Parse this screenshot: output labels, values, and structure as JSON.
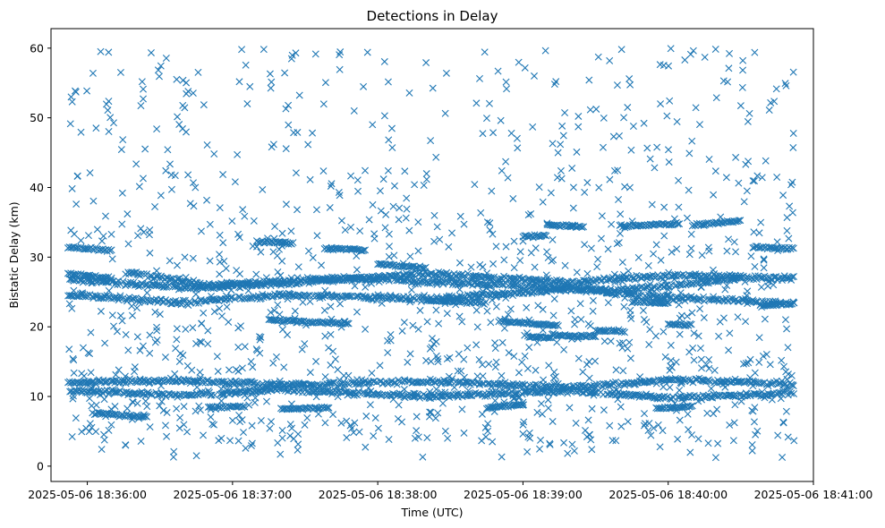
{
  "chart_data": {
    "type": "scatter",
    "title": "Detections in Delay",
    "xlabel": "Time (UTC)",
    "ylabel": "Bistatic Delay (km)",
    "marker": "x",
    "color": "#1f77b4",
    "grid": false,
    "x_ticks": [
      "2025-05-06 18:36:00",
      "2025-05-06 18:37:00",
      "2025-05-06 18:38:00",
      "2025-05-06 18:39:00",
      "2025-05-06 18:40:00",
      "2025-05-06 18:41:00"
    ],
    "y_ticks": [
      0,
      10,
      20,
      30,
      40,
      50,
      60
    ],
    "xlim": [
      "2025-05-06 18:35:45",
      "2025-05-06 18:41:00"
    ],
    "ylim": [
      -2.2,
      62.8
    ],
    "x_range": [
      "2025-05-06 18:35:52",
      "2025-05-06 18:40:52"
    ],
    "tracks": [
      {
        "name": "",
        "points": [
          [
            "2025-05-06 18:35:52",
            12.0
          ],
          [
            "2025-05-06 18:36:40",
            12.3
          ],
          [
            "2025-05-06 18:37:20",
            11.6
          ],
          [
            "2025-05-06 18:38:20",
            12.2
          ],
          [
            "2025-05-06 18:39:20",
            11.3
          ],
          [
            "2025-05-06 18:40:00",
            12.4
          ],
          [
            "2025-05-06 18:40:52",
            11.8
          ]
        ]
      },
      {
        "name": "",
        "points": [
          [
            "2025-05-06 18:35:52",
            10.8
          ],
          [
            "2025-05-06 18:36:40",
            10.2
          ],
          [
            "2025-05-06 18:37:20",
            11.0
          ],
          [
            "2025-05-06 18:38:20",
            10.0
          ],
          [
            "2025-05-06 18:39:20",
            10.8
          ],
          [
            "2025-05-06 18:40:00",
            9.8
          ],
          [
            "2025-05-06 18:40:52",
            10.5
          ]
        ]
      },
      {
        "name": "",
        "points": [
          [
            "2025-05-06 18:35:52",
            24.6
          ],
          [
            "2025-05-06 18:36:40",
            23.4
          ],
          [
            "2025-05-06 18:37:20",
            24.6
          ],
          [
            "2025-05-06 18:38:20",
            24.0
          ],
          [
            "2025-05-06 18:39:20",
            25.4
          ],
          [
            "2025-05-06 18:40:00",
            24.2
          ],
          [
            "2025-05-06 18:40:52",
            23.4
          ]
        ]
      },
      {
        "name": "",
        "points": [
          [
            "2025-05-06 18:35:52",
            26.8
          ],
          [
            "2025-05-06 18:36:40",
            25.6
          ],
          [
            "2025-05-06 18:37:20",
            26.2
          ],
          [
            "2025-05-06 18:38:20",
            27.6
          ],
          [
            "2025-05-06 18:39:20",
            26.4
          ],
          [
            "2025-05-06 18:40:00",
            27.4
          ],
          [
            "2025-05-06 18:40:52",
            27.0
          ]
        ]
      },
      {
        "name": "",
        "points": [
          [
            "2025-05-06 18:36:15",
            27.8
          ],
          [
            "2025-05-06 18:36:50",
            26.0
          ],
          [
            "2025-05-06 18:37:45",
            27.0
          ],
          [
            "2025-05-06 18:38:40",
            26.2
          ],
          [
            "2025-05-06 18:39:40",
            25.2
          ],
          [
            "2025-05-06 18:40:30",
            27.0
          ]
        ]
      }
    ],
    "segments": [
      {
        "x": [
          "2025-05-06 18:35:52",
          "2025-05-06 18:36:10"
        ],
        "y": [
          31.4,
          31.0
        ]
      },
      {
        "x": [
          "2025-05-06 18:35:52",
          "2025-05-06 18:36:10"
        ],
        "y": [
          27.6,
          27.0
        ]
      },
      {
        "x": [
          "2025-05-06 18:36:03",
          "2025-05-06 18:36:25"
        ],
        "y": [
          7.6,
          7.0
        ]
      },
      {
        "x": [
          "2025-05-06 18:36:50",
          "2025-05-06 18:37:05"
        ],
        "y": [
          8.4,
          8.6
        ]
      },
      {
        "x": [
          "2025-05-06 18:37:10",
          "2025-05-06 18:37:25"
        ],
        "y": [
          32.2,
          32.0
        ]
      },
      {
        "x": [
          "2025-05-06 18:37:15",
          "2025-05-06 18:37:48"
        ],
        "y": [
          21.0,
          20.4
        ]
      },
      {
        "x": [
          "2025-05-06 18:37:20",
          "2025-05-06 18:37:40"
        ],
        "y": [
          8.2,
          8.4
        ]
      },
      {
        "x": [
          "2025-05-06 18:37:38",
          "2025-05-06 18:37:55"
        ],
        "y": [
          31.3,
          31.0
        ]
      },
      {
        "x": [
          "2025-05-06 18:38:00",
          "2025-05-06 18:38:20"
        ],
        "y": [
          29.0,
          28.4
        ]
      },
      {
        "x": [
          "2025-05-06 18:38:20",
          "2025-05-06 18:38:45"
        ],
        "y": [
          23.8,
          23.4
        ]
      },
      {
        "x": [
          "2025-05-06 18:38:45",
          "2025-05-06 18:39:00"
        ],
        "y": [
          8.4,
          8.8
        ]
      },
      {
        "x": [
          "2025-05-06 18:38:50",
          "2025-05-06 18:39:15"
        ],
        "y": [
          20.8,
          20.2
        ]
      },
      {
        "x": [
          "2025-05-06 18:39:00",
          "2025-05-06 18:39:10"
        ],
        "y": [
          33.0,
          33.0
        ]
      },
      {
        "x": [
          "2025-05-06 18:39:02",
          "2025-05-06 18:39:12"
        ],
        "y": [
          18.6,
          18.4
        ]
      },
      {
        "x": [
          "2025-05-06 18:39:10",
          "2025-05-06 18:39:25"
        ],
        "y": [
          34.6,
          34.4
        ]
      },
      {
        "x": [
          "2025-05-06 18:39:12",
          "2025-05-06 18:39:30"
        ],
        "y": [
          18.8,
          18.6
        ]
      },
      {
        "x": [
          "2025-05-06 18:39:30",
          "2025-05-06 18:39:42"
        ],
        "y": [
          19.4,
          19.4
        ]
      },
      {
        "x": [
          "2025-05-06 18:39:40",
          "2025-05-06 18:40:05"
        ],
        "y": [
          34.4,
          34.8
        ]
      },
      {
        "x": [
          "2025-05-06 18:39:45",
          "2025-05-06 18:40:00"
        ],
        "y": [
          23.6,
          23.4
        ]
      },
      {
        "x": [
          "2025-05-06 18:39:55",
          "2025-05-06 18:40:10"
        ],
        "y": [
          8.2,
          8.6
        ]
      },
      {
        "x": [
          "2025-05-06 18:40:00",
          "2025-05-06 18:40:10"
        ],
        "y": [
          20.4,
          20.2
        ]
      },
      {
        "x": [
          "2025-05-06 18:40:10",
          "2025-05-06 18:40:30"
        ],
        "y": [
          34.6,
          35.2
        ]
      },
      {
        "x": [
          "2025-05-06 18:40:35",
          "2025-05-06 18:40:52"
        ],
        "y": [
          31.4,
          31.2
        ]
      },
      {
        "x": [
          "2025-05-06 18:40:38",
          "2025-05-06 18:40:52"
        ],
        "y": [
          23.0,
          23.4
        ]
      }
    ],
    "scatter_y_range": [
      0.5,
      60
    ]
  }
}
